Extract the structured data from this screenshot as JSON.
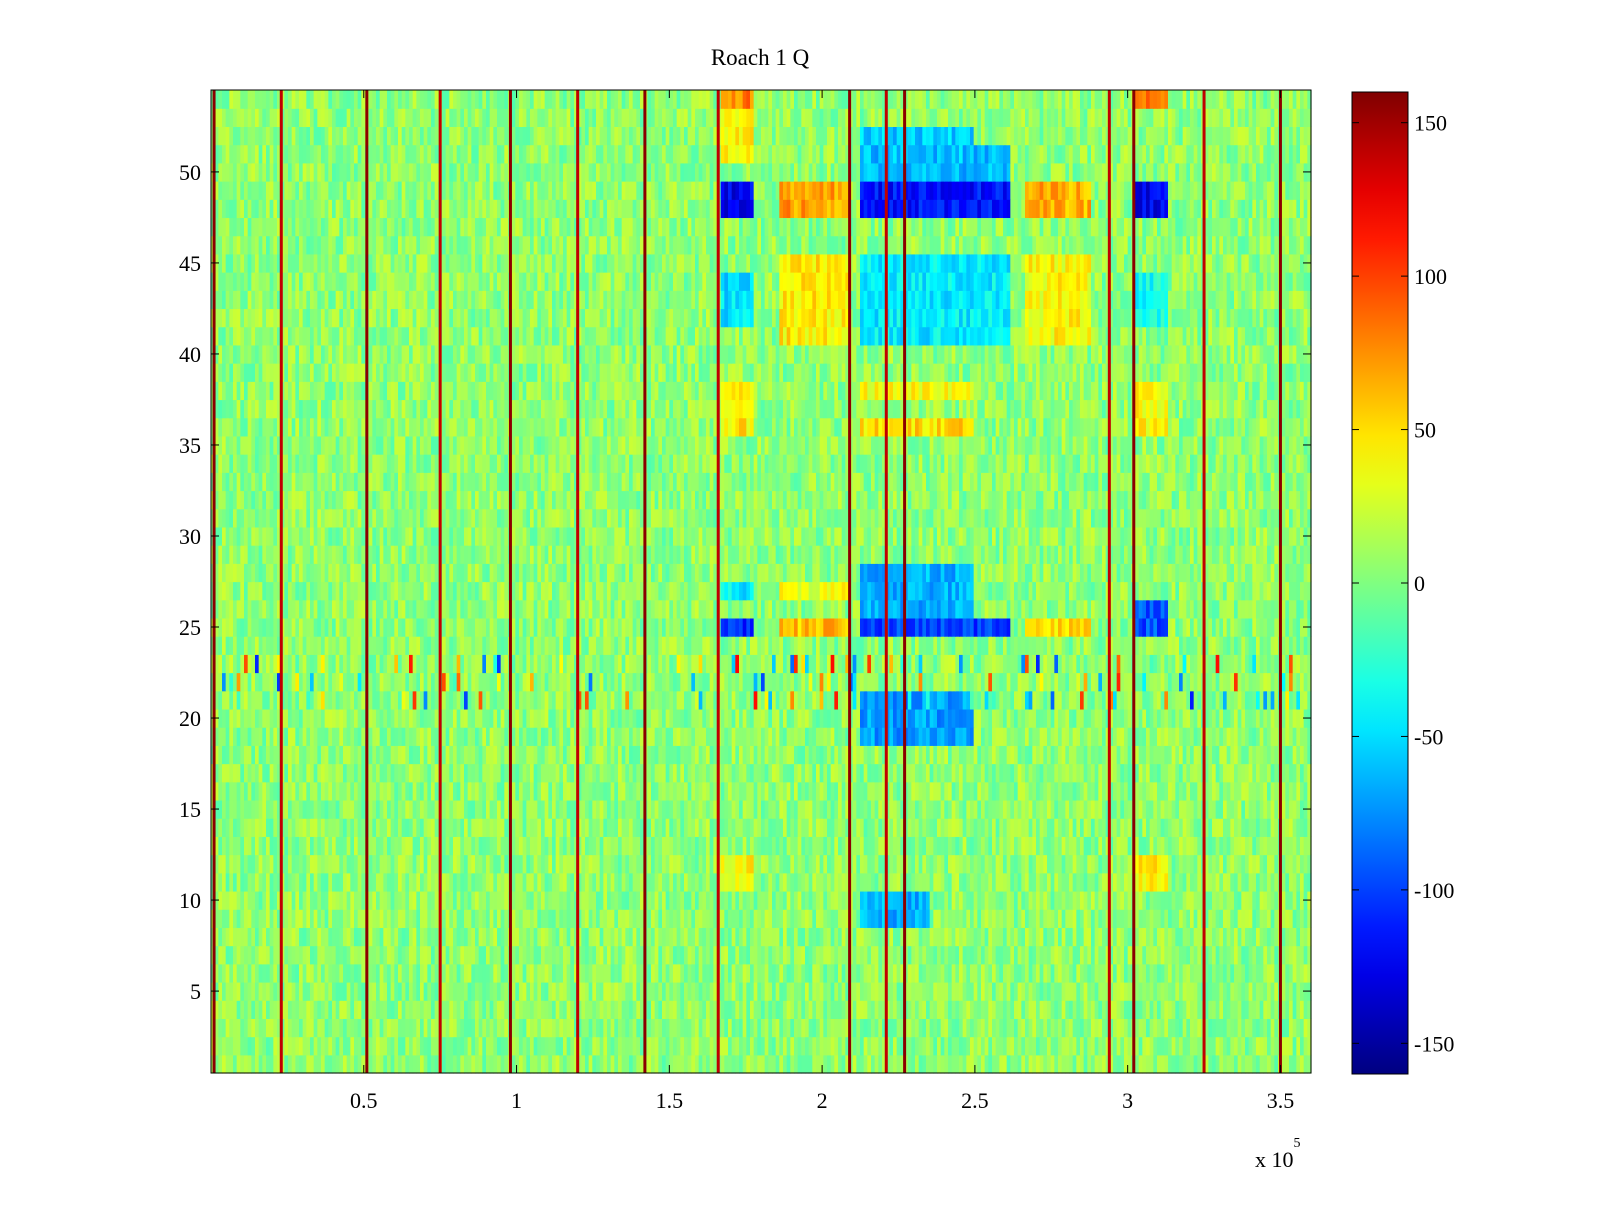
{
  "chart_data": {
    "type": "heatmap",
    "title": "Roach 1 Q",
    "xlabel": "",
    "ylabel": "",
    "x_exponent_label": "x 10",
    "x_exponent_power": "5",
    "xlim": [
      0,
      360000
    ],
    "ylim": [
      0.5,
      54.5
    ],
    "x_ticks": [
      {
        "value": 50000,
        "label": "0.5"
      },
      {
        "value": 100000,
        "label": "1"
      },
      {
        "value": 150000,
        "label": "1.5"
      },
      {
        "value": 200000,
        "label": "2"
      },
      {
        "value": 250000,
        "label": "2.5"
      },
      {
        "value": 300000,
        "label": "3"
      },
      {
        "value": 350000,
        "label": "3.5"
      }
    ],
    "y_ticks": [
      {
        "value": 5,
        "label": "5"
      },
      {
        "value": 10,
        "label": "10"
      },
      {
        "value": 15,
        "label": "15"
      },
      {
        "value": 20,
        "label": "20"
      },
      {
        "value": 25,
        "label": "25"
      },
      {
        "value": 30,
        "label": "30"
      },
      {
        "value": 35,
        "label": "35"
      },
      {
        "value": 40,
        "label": "40"
      },
      {
        "value": 45,
        "label": "45"
      },
      {
        "value": 50,
        "label": "50"
      }
    ],
    "colorbar": {
      "colormap": "jet",
      "clim": [
        -160,
        160
      ],
      "ticks": [
        {
          "value": 150,
          "label": "150"
        },
        {
          "value": 100,
          "label": "100"
        },
        {
          "value": 50,
          "label": "50"
        },
        {
          "value": 0,
          "label": "0"
        },
        {
          "value": -50,
          "label": "-50"
        },
        {
          "value": -100,
          "label": "-100"
        },
        {
          "value": -150,
          "label": "-150"
        }
      ]
    },
    "rows": 54,
    "background_mean": 5,
    "vertical_spike_lines_x": [
      1000,
      23000,
      51000,
      75000,
      98000,
      120000,
      142000,
      166000,
      209000,
      221000,
      227000,
      294000,
      302000,
      325000,
      350000
    ],
    "regions": [
      {
        "x_range": [
          167000,
          178000
        ],
        "y_range": [
          47.5,
          49.5
        ],
        "value": -125
      },
      {
        "x_range": [
          167000,
          178000
        ],
        "y_range": [
          41.5,
          44.5
        ],
        "value": -50
      },
      {
        "x_range": [
          167000,
          178000
        ],
        "y_range": [
          24.5,
          25.5
        ],
        "value": -110
      },
      {
        "x_range": [
          167000,
          178000
        ],
        "y_range": [
          26.5,
          27.5
        ],
        "value": -45
      },
      {
        "x_range": [
          167000,
          178000
        ],
        "y_range": [
          50.5,
          54.5
        ],
        "value": 40
      },
      {
        "x_range": [
          167000,
          178000
        ],
        "y_range": [
          35.5,
          38.5
        ],
        "value": 45
      },
      {
        "x_range": [
          167000,
          178000
        ],
        "y_range": [
          10.5,
          12.5
        ],
        "value": 40
      },
      {
        "x_range": [
          167000,
          178000
        ],
        "y_range": [
          53.5,
          54.5
        ],
        "value": 80
      },
      {
        "x_range": [
          186000,
          209000
        ],
        "y_range": [
          47.5,
          49.5
        ],
        "value": 70
      },
      {
        "x_range": [
          186000,
          209000
        ],
        "y_range": [
          40.5,
          45.5
        ],
        "value": 45
      },
      {
        "x_range": [
          186000,
          209000
        ],
        "y_range": [
          24.5,
          25.5
        ],
        "value": 60
      },
      {
        "x_range": [
          186000,
          209000
        ],
        "y_range": [
          26.5,
          27.5
        ],
        "value": 35
      },
      {
        "x_range": [
          212000,
          262000
        ],
        "y_range": [
          47.5,
          49.5
        ],
        "value": -115
      },
      {
        "x_range": [
          212000,
          262000
        ],
        "y_range": [
          49.5,
          51.5
        ],
        "value": -60
      },
      {
        "x_range": [
          212000,
          250000
        ],
        "y_range": [
          51.5,
          52.5
        ],
        "value": -55
      },
      {
        "x_range": [
          212000,
          262000
        ],
        "y_range": [
          40.5,
          45.5
        ],
        "value": -45
      },
      {
        "x_range": [
          212000,
          262000
        ],
        "y_range": [
          24.5,
          25.5
        ],
        "value": -100
      },
      {
        "x_range": [
          212000,
          250000
        ],
        "y_range": [
          25.5,
          28.5
        ],
        "value": -65
      },
      {
        "x_range": [
          212000,
          250000
        ],
        "y_range": [
          18.5,
          21.5
        ],
        "value": -70
      },
      {
        "x_range": [
          212000,
          235000
        ],
        "y_range": [
          8.5,
          10.5
        ],
        "value": -65
      },
      {
        "x_range": [
          212000,
          250000
        ],
        "y_range": [
          35.5,
          36.5
        ],
        "value": 50
      },
      {
        "x_range": [
          212000,
          250000
        ],
        "y_range": [
          37.5,
          38.5
        ],
        "value": 40
      },
      {
        "x_range": [
          266000,
          288000
        ],
        "y_range": [
          47.5,
          49.5
        ],
        "value": 65
      },
      {
        "x_range": [
          266000,
          288000
        ],
        "y_range": [
          40.5,
          45.5
        ],
        "value": 40
      },
      {
        "x_range": [
          266000,
          288000
        ],
        "y_range": [
          24.5,
          25.5
        ],
        "value": 50
      },
      {
        "x_range": [
          303000,
          313000
        ],
        "y_range": [
          47.5,
          49.5
        ],
        "value": -125
      },
      {
        "x_range": [
          303000,
          313000
        ],
        "y_range": [
          24.5,
          26.5
        ],
        "value": -95
      },
      {
        "x_range": [
          303000,
          313000
        ],
        "y_range": [
          41.5,
          44.5
        ],
        "value": -35
      },
      {
        "x_range": [
          303000,
          313000
        ],
        "y_range": [
          53.5,
          54.5
        ],
        "value": 80
      },
      {
        "x_range": [
          303000,
          313000
        ],
        "y_range": [
          35.5,
          38.5
        ],
        "value": 40
      },
      {
        "x_range": [
          303000,
          313000
        ],
        "y_range": [
          10.5,
          12.5
        ],
        "value": 45
      }
    ],
    "band_rows": {
      "y_range": [
        20.5,
        23.5
      ],
      "noise_amplitude": 120
    }
  }
}
